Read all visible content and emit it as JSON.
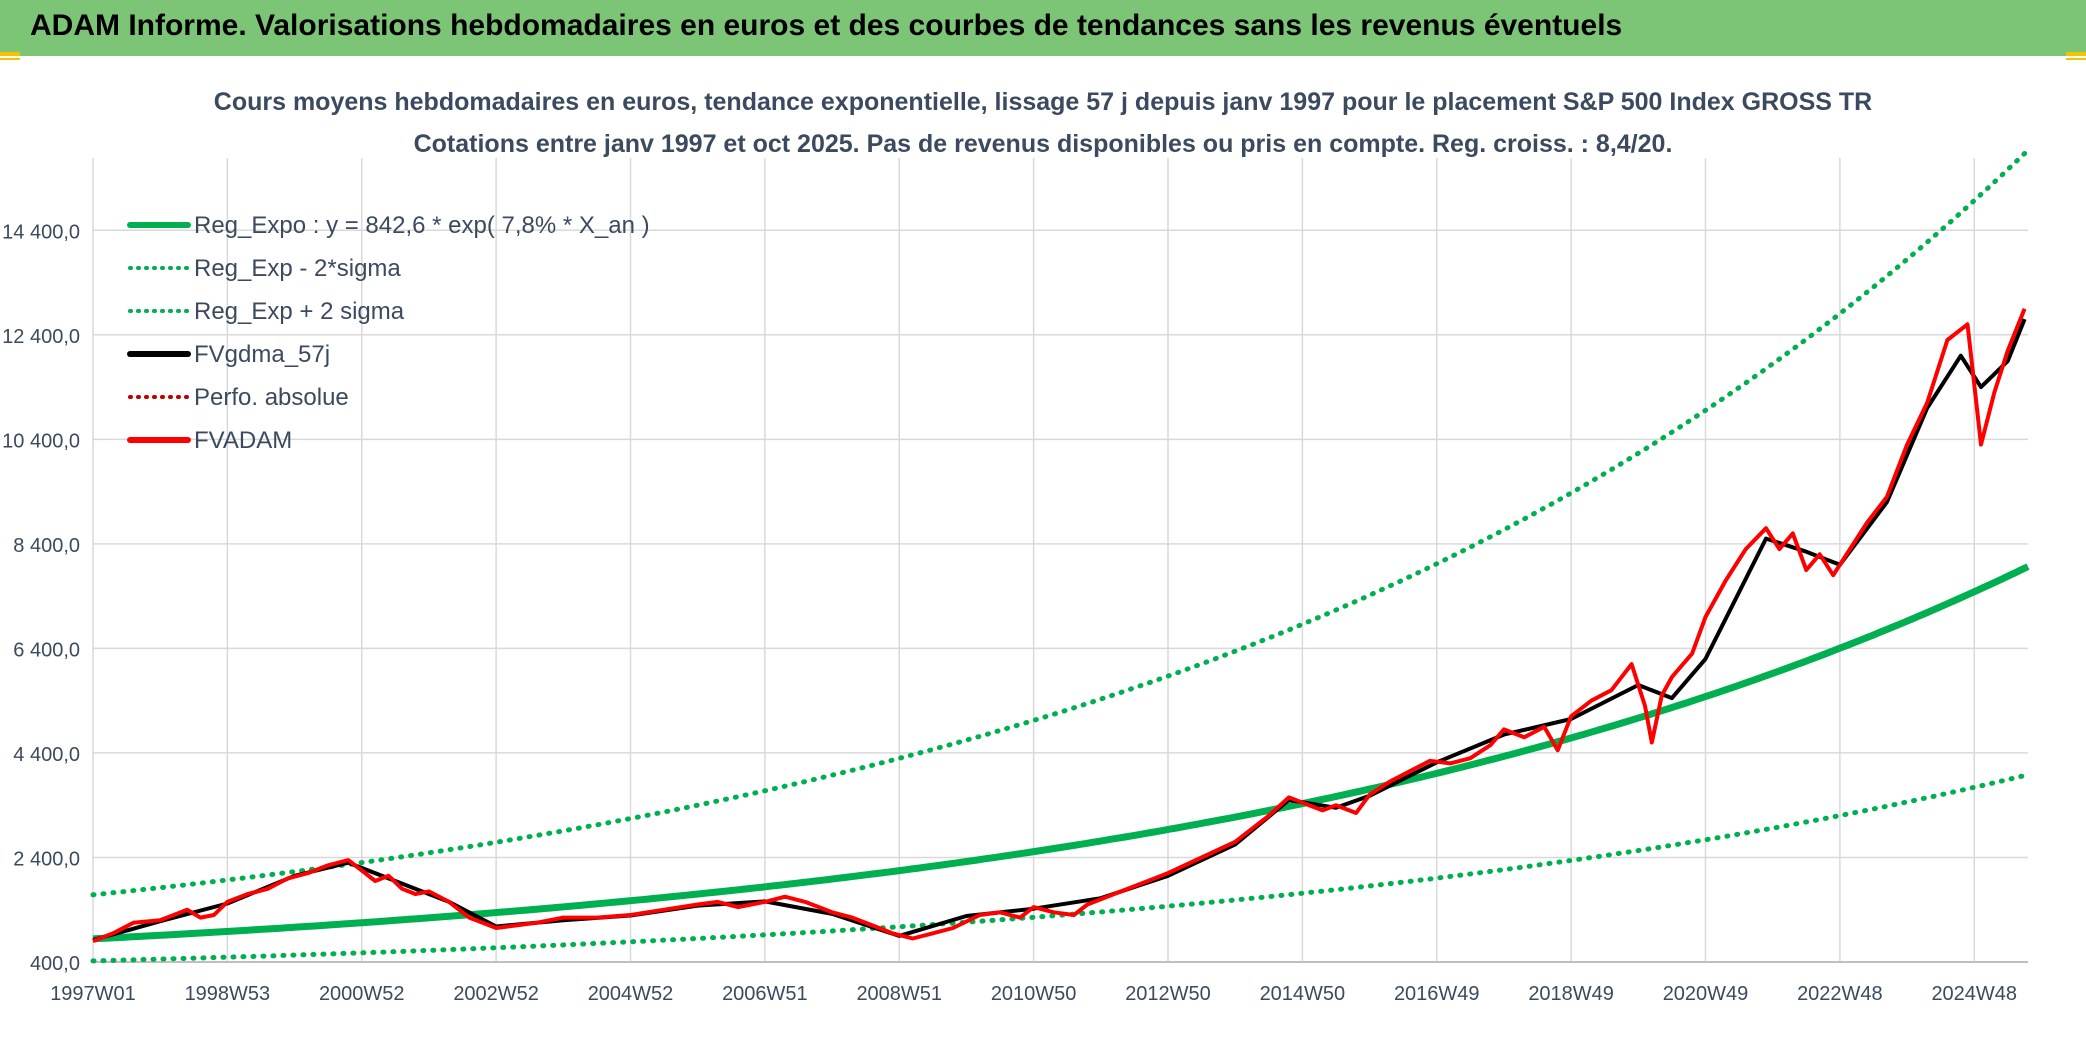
{
  "header": {
    "title": "ADAM Informe. Valorisations hebdomadaires en euros et des courbes de tendances sans les revenus éventuels"
  },
  "colors": {
    "header_bg": "#7cc576",
    "trend": "#00b050",
    "fvadam": "#ff0000",
    "fvgdma": "#000000",
    "perfo": "#c00000",
    "grid": "#d9d9d9",
    "text": "#3b4a5e"
  },
  "chart_data": {
    "type": "line",
    "title": "Cours moyens hebdomadaires en euros, tendance exponentielle, lissage 57 j depuis janv 1997 pour le placement S&P 500 Index GROSS TR",
    "subtitle": "Cotations entre janv 1997 et oct 2025. Pas de revenus disponibles ou pris en compte. Reg. croiss. : 8,4/20.",
    "xlabel": "",
    "ylabel": "",
    "xlim": [
      1997.0,
      2025.8
    ],
    "ylim": [
      400,
      15400
    ],
    "y_ticks": [
      400,
      2400,
      4400,
      6400,
      8400,
      10400,
      12400,
      14400
    ],
    "y_tick_labels": [
      "400,0",
      "2 400,0",
      "4 400,0",
      "6 400,0",
      "8 400,0",
      "10 400,0",
      "12 400,0",
      "14 400,0"
    ],
    "x_ticks": [
      {
        "label": "1997W01",
        "x": 1997.0
      },
      {
        "label": "1998W53",
        "x": 1999.0
      },
      {
        "label": "2000W52",
        "x": 2001.0
      },
      {
        "label": "2002W52",
        "x": 2003.0
      },
      {
        "label": "2004W52",
        "x": 2005.0
      },
      {
        "label": "2006W51",
        "x": 2007.0
      },
      {
        "label": "2008W51",
        "x": 2009.0
      },
      {
        "label": "2010W50",
        "x": 2011.0
      },
      {
        "label": "2012W50",
        "x": 2013.0
      },
      {
        "label": "2014W50",
        "x": 2015.0
      },
      {
        "label": "2016W49",
        "x": 2017.0
      },
      {
        "label": "2018W49",
        "x": 2019.0
      },
      {
        "label": "2020W49",
        "x": 2021.0
      },
      {
        "label": "2022W48",
        "x": 2023.0
      },
      {
        "label": "2024W48",
        "x": 2025.0
      }
    ],
    "regression": {
      "a": 842.6,
      "rate": 0.078,
      "minus_factor": 0.5,
      "plus_factor": 2.0,
      "x0": 1997.0
    },
    "legend": [
      {
        "label": "Reg_Expo : y = 842,6 * exp( 7,8% *  X_an )",
        "style": "solid",
        "color": "#00b050"
      },
      {
        "label": "Reg_Exp - 2*sigma",
        "style": "dotted",
        "color": "#00b050"
      },
      {
        "label": "Reg_Exp + 2 sigma",
        "style": "dotted",
        "color": "#00b050"
      },
      {
        "label": "FVgdma_57j",
        "style": "solid",
        "color": "#000000"
      },
      {
        "label": "Perfo. absolue",
        "style": "dotted",
        "color": "#c00000"
      },
      {
        "label": "FVADAM",
        "style": "solid",
        "color": "#ff0000"
      }
    ],
    "series": [
      {
        "name": "FVADAM",
        "x": [
          1997.0,
          1997.3,
          1997.6,
          1998.0,
          1998.4,
          1998.6,
          1998.8,
          1999.0,
          1999.3,
          1999.6,
          1999.9,
          2000.2,
          2000.5,
          2000.8,
          2001.0,
          2001.2,
          2001.4,
          2001.6,
          2001.8,
          2002.0,
          2002.3,
          2002.6,
          2002.8,
          2003.0,
          2003.3,
          2003.6,
          2004.0,
          2004.5,
          2005.0,
          2005.5,
          2006.0,
          2006.3,
          2006.6,
          2007.0,
          2007.3,
          2007.6,
          2008.0,
          2008.3,
          2008.6,
          2008.9,
          2009.2,
          2009.5,
          2009.8,
          2010.2,
          2010.5,
          2010.8,
          2011.0,
          2011.3,
          2011.6,
          2011.8,
          2012.0,
          2012.3,
          2012.6,
          2013.0,
          2013.5,
          2014.0,
          2014.5,
          2014.8,
          2015.0,
          2015.3,
          2015.5,
          2015.8,
          2016.0,
          2016.3,
          2016.6,
          2016.9,
          2017.2,
          2017.5,
          2017.8,
          2018.0,
          2018.3,
          2018.6,
          2018.8,
          2019.0,
          2019.3,
          2019.6,
          2019.9,
          2020.1,
          2020.2,
          2020.35,
          2020.5,
          2020.8,
          2021.0,
          2021.3,
          2021.6,
          2021.9,
          2022.1,
          2022.3,
          2022.5,
          2022.7,
          2022.9,
          2023.1,
          2023.4,
          2023.7,
          2024.0,
          2024.3,
          2024.6,
          2024.9,
          2025.1,
          2025.3,
          2025.5,
          2025.75
        ],
        "values": [
          800,
          950,
          1150,
          1200,
          1400,
          1250,
          1300,
          1550,
          1700,
          1800,
          2000,
          2100,
          2250,
          2350,
          2150,
          1950,
          2050,
          1800,
          1700,
          1750,
          1550,
          1250,
          1150,
          1050,
          1100,
          1150,
          1250,
          1250,
          1300,
          1400,
          1500,
          1550,
          1450,
          1550,
          1650,
          1550,
          1350,
          1250,
          1100,
          950,
          850,
          950,
          1050,
          1300,
          1350,
          1250,
          1450,
          1350,
          1300,
          1500,
          1600,
          1750,
          1900,
          2100,
          2400,
          2700,
          3200,
          3550,
          3450,
          3300,
          3400,
          3250,
          3600,
          3850,
          4050,
          4250,
          4200,
          4300,
          4550,
          4850,
          4700,
          4900,
          4450,
          5100,
          5400,
          5600,
          6100,
          5300,
          4600,
          5500,
          5850,
          6300,
          7000,
          7700,
          8300,
          8700,
          8300,
          8600,
          7900,
          8200,
          7800,
          8200,
          8800,
          9300,
          10300,
          11100,
          12300,
          12600,
          10300,
          11300,
          12100,
          12900
        ]
      },
      {
        "name": "FVgdma_57j",
        "x": [
          1997.0,
          1998.0,
          1999.0,
          2000.0,
          2000.8,
          2001.5,
          2002.3,
          2003.0,
          2004.0,
          2005.0,
          2006.0,
          2007.0,
          2008.0,
          2009.0,
          2010.0,
          2011.0,
          2012.0,
          2013.0,
          2014.0,
          2014.8,
          2015.5,
          2016.0,
          2017.0,
          2018.0,
          2019.0,
          2020.0,
          2020.5,
          2021.0,
          2021.9,
          2022.5,
          2023.0,
          2023.7,
          2024.3,
          2024.8,
          2025.1,
          2025.5,
          2025.75
        ],
        "values": [
          820,
          1180,
          1520,
          2050,
          2300,
          1950,
          1550,
          1080,
          1200,
          1290,
          1480,
          1560,
          1320,
          900,
          1280,
          1420,
          1620,
          2050,
          2650,
          3500,
          3350,
          3580,
          4220,
          4750,
          5050,
          5700,
          5450,
          6200,
          8500,
          8250,
          8000,
          9200,
          11000,
          12000,
          11400,
          11900,
          12700
        ]
      }
    ]
  }
}
